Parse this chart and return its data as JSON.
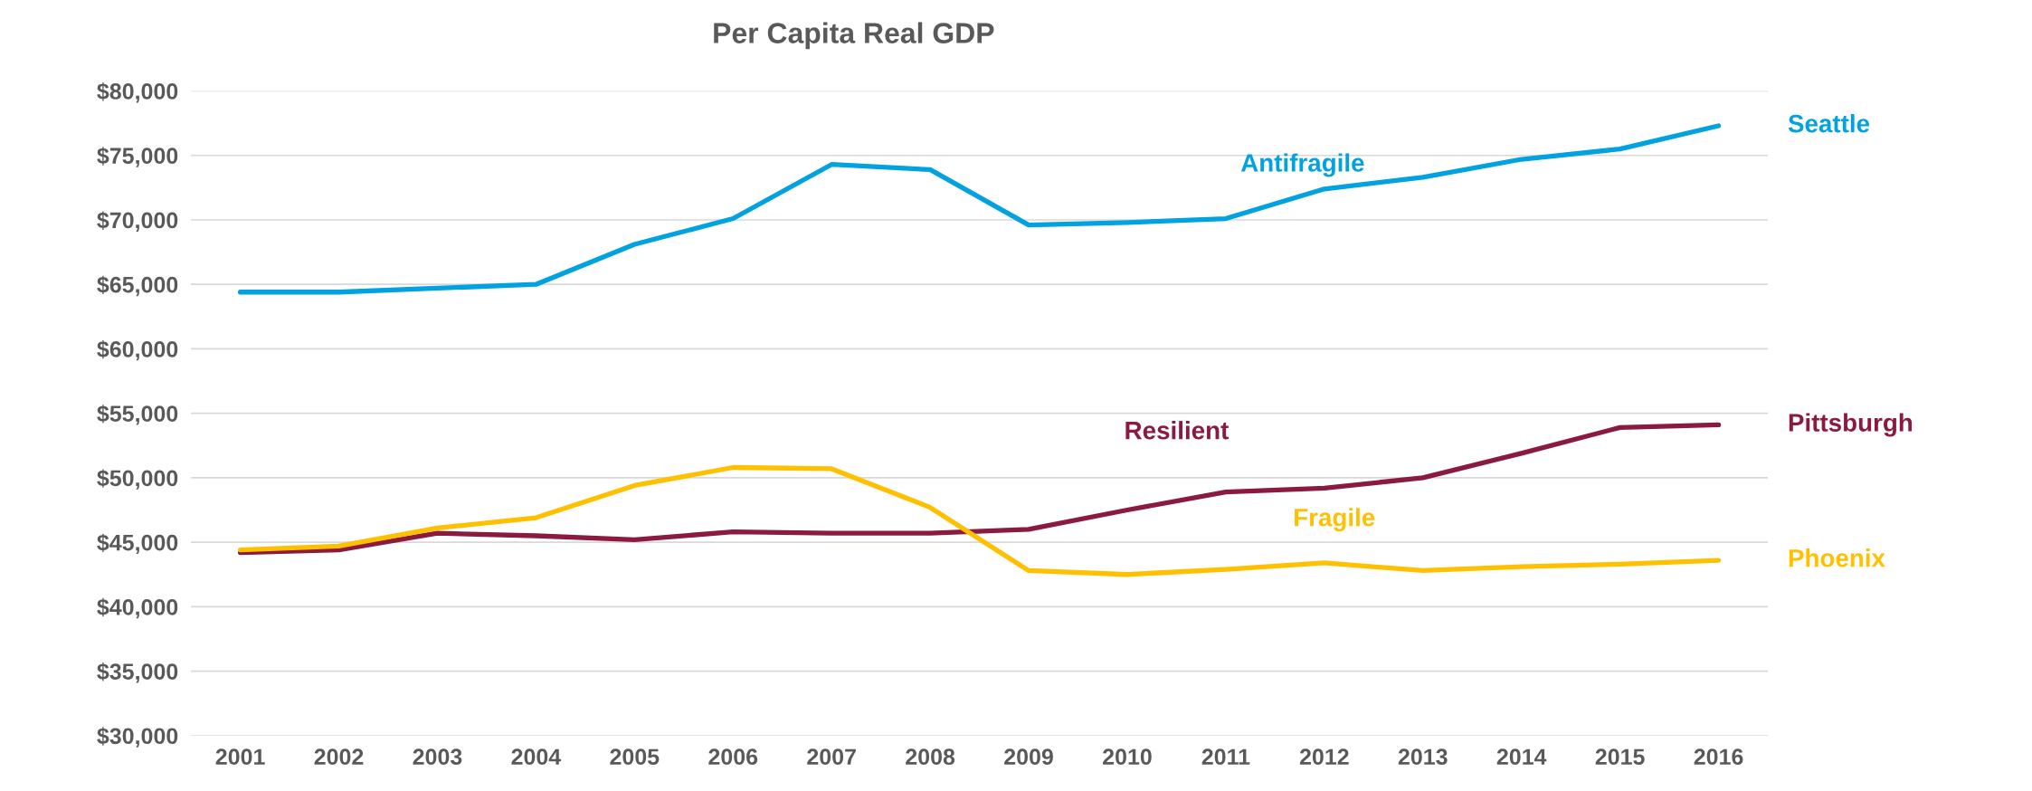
{
  "chart_data": {
    "type": "line",
    "title": "Per Capita Real GDP",
    "categories": [
      "2001",
      "2002",
      "2003",
      "2004",
      "2005",
      "2006",
      "2007",
      "2008",
      "2009",
      "2010",
      "2011",
      "2012",
      "2013",
      "2014",
      "2015",
      "2016"
    ],
    "series": [
      {
        "name": "Seattle",
        "color": "#00a2e0",
        "values": [
          64400,
          64400,
          64700,
          65000,
          68100,
          70100,
          74300,
          73900,
          69600,
          69800,
          70100,
          72400,
          73300,
          74700,
          75500,
          77300
        ]
      },
      {
        "name": "Pittsburgh",
        "color": "#8b1a3f",
        "values": [
          44200,
          44400,
          45700,
          45500,
          45200,
          45800,
          45700,
          45700,
          46000,
          47500,
          48900,
          49200,
          50000,
          51900,
          53900,
          54100
        ]
      },
      {
        "name": "Phoenix",
        "color": "#ffc000",
        "values": [
          44400,
          44700,
          46100,
          46900,
          49400,
          50800,
          50700,
          47700,
          42800,
          42500,
          42900,
          43400,
          42800,
          43100,
          43300,
          43600
        ]
      }
    ],
    "annotations": [
      "Antifragile",
      "Resilient",
      "Fragile"
    ],
    "ylim": [
      30000,
      80000
    ],
    "yticks": [
      {
        "value": 30000,
        "label": "$30,000"
      },
      {
        "value": 35000,
        "label": "$35,000"
      },
      {
        "value": 40000,
        "label": "$40,000"
      },
      {
        "value": 45000,
        "label": "$45,000"
      },
      {
        "value": 50000,
        "label": "$50,000"
      },
      {
        "value": 55000,
        "label": "$55,000"
      },
      {
        "value": 60000,
        "label": "$60,000"
      },
      {
        "value": 65000,
        "label": "$65,000"
      },
      {
        "value": 70000,
        "label": "$70,000"
      },
      {
        "value": 75000,
        "label": "$75,000"
      },
      {
        "value": 80000,
        "label": "$80,000"
      }
    ],
    "grid": "y",
    "marker": "none",
    "line_style": "solid"
  }
}
